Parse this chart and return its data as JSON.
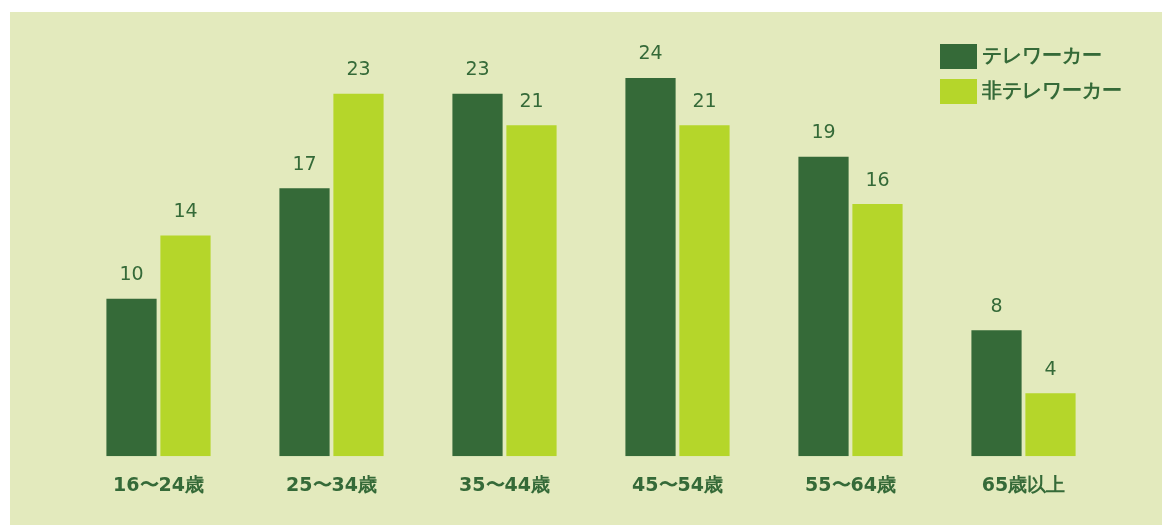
{
  "chart_data": {
    "type": "bar",
    "categories": [
      "16〜24歳",
      "25〜34歳",
      "35〜44歳",
      "45〜54歳",
      "55〜64歳",
      "65歳以上"
    ],
    "series": [
      {
        "name": "テレワーカー",
        "color": "#356a38",
        "values": [
          10,
          17,
          23,
          24,
          19,
          8
        ]
      },
      {
        "name": "非テレワーカー",
        "color": "#b5d62a",
        "values": [
          14,
          23,
          21,
          21,
          16,
          4
        ]
      }
    ],
    "ylim": [
      0,
      28
    ],
    "tick_labels": "x",
    "data_labels": true,
    "legend": "top right",
    "grid": false
  }
}
